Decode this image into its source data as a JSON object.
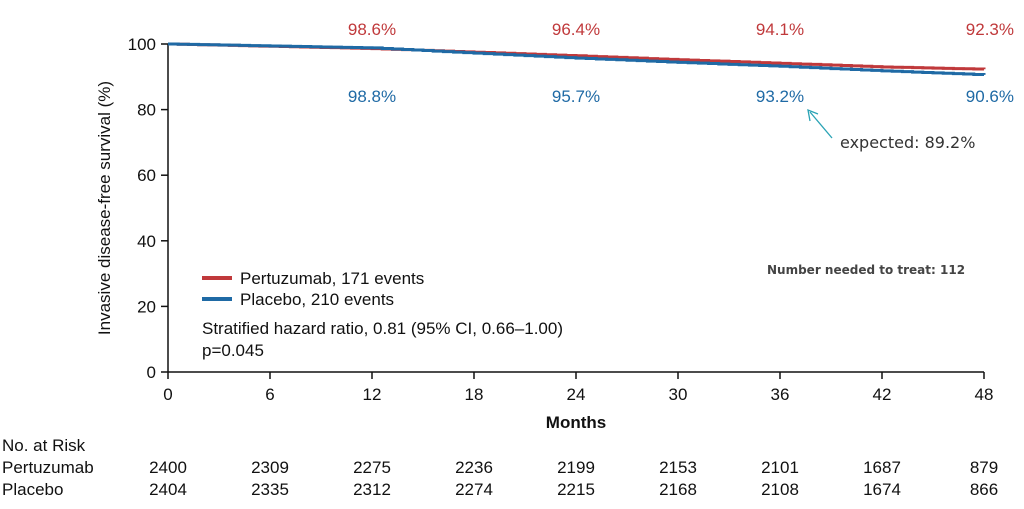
{
  "colors": {
    "pertuzumab": "#c0393b",
    "placebo": "#1f6aa5",
    "annotation": "#2aa3b5"
  },
  "chart_data": {
    "type": "line",
    "ylabel": "Invasive disease-free survival (%)",
    "xlabel": "Months",
    "ylim": [
      0,
      100
    ],
    "xlim": [
      0,
      48
    ],
    "yticks": [
      0,
      20,
      40,
      60,
      80,
      100
    ],
    "xticks": [
      0,
      6,
      12,
      18,
      24,
      30,
      36,
      42,
      48
    ],
    "series": [
      {
        "name": "Pertuzumab, 171 events",
        "key": "pertuzumab",
        "x": [
          0,
          6,
          12,
          18,
          24,
          30,
          36,
          42,
          48
        ],
        "y": [
          100,
          99.3,
          98.6,
          97.5,
          96.4,
          95.2,
          94.1,
          93.0,
          92.3
        ]
      },
      {
        "name": "Placebo, 210 events",
        "key": "placebo",
        "x": [
          0,
          6,
          12,
          18,
          24,
          30,
          36,
          42,
          48
        ],
        "y": [
          100,
          99.4,
          98.8,
          97.2,
          95.7,
          94.4,
          93.2,
          91.8,
          90.6
        ]
      }
    ],
    "pertuzumab_labels": [
      "98.6%",
      "96.4%",
      "94.1%",
      "92.3%"
    ],
    "placebo_labels": [
      "98.8%",
      "95.7%",
      "93.2%",
      "90.6%"
    ],
    "label_months": [
      12,
      24,
      36,
      48
    ],
    "legend": {
      "pertuzumab": "Pertuzumab, 171 events",
      "placebo": "Placebo, 210 events",
      "hr_text": "Stratified hazard ratio, 0.81 (95% CI, 0.66–1.00)",
      "p_text": "p=0.045"
    },
    "annotations": {
      "expected": "expected: 89.2%",
      "nnt": "Number needed to treat: 112"
    },
    "risk_table": {
      "header": "No. at Risk",
      "rows": [
        {
          "label": "Pertuzumab",
          "values": [
            "2400",
            "2309",
            "2275",
            "2236",
            "2199",
            "2153",
            "2101",
            "1687",
            "879"
          ]
        },
        {
          "label": "Placebo",
          "values": [
            "2404",
            "2335",
            "2312",
            "2274",
            "2215",
            "2168",
            "2108",
            "1674",
            "866"
          ]
        }
      ]
    }
  }
}
